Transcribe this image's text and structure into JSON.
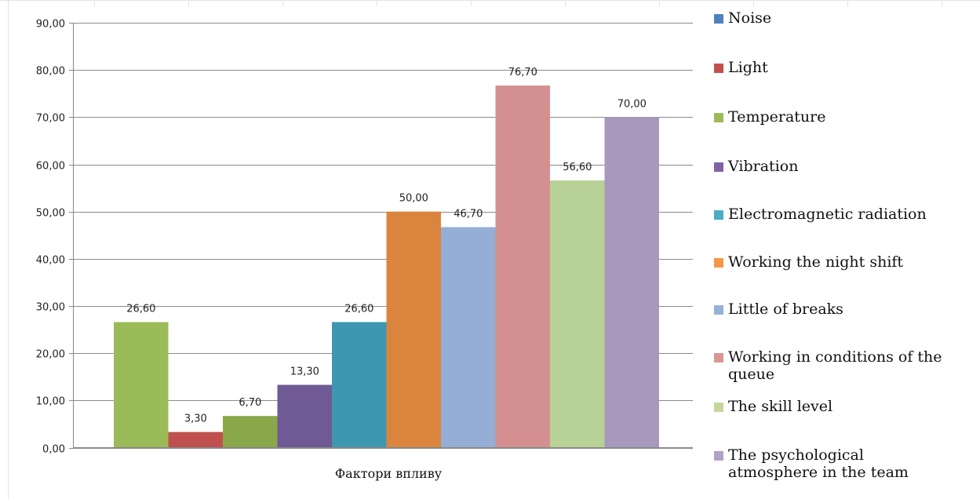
{
  "chart_data": {
    "type": "bar",
    "title": "",
    "xlabel": "Фактори впливу",
    "ylabel": "",
    "ylim": [
      0,
      90
    ],
    "yticks": [
      "0,00",
      "10,00",
      "20,00",
      "30,00",
      "40,00",
      "50,00",
      "60,00",
      "70,00",
      "80,00",
      "90,00"
    ],
    "grid": true,
    "legend_position": "right",
    "series": [
      {
        "name": "Noise",
        "value": 26.6,
        "label": "26,60",
        "color": "#9BBB59"
      },
      {
        "name": "Light",
        "value": 3.3,
        "label": "3,30",
        "color": "#C0504D"
      },
      {
        "name": "Temperature",
        "value": 6.7,
        "label": "6,70",
        "color": "#8AA84A"
      },
      {
        "name": "Vibration",
        "value": 13.3,
        "label": "13,30",
        "color": "#6F5A96"
      },
      {
        "name": "Electromagnetic radiation",
        "value": 26.6,
        "label": "26,60",
        "color": "#3E97B0"
      },
      {
        "name": "Working the night shift",
        "value": 50.0,
        "label": "50,00",
        "color": "#DB843D"
      },
      {
        "name": "Little of breaks",
        "value": 46.7,
        "label": "46,70",
        "color": "#95AED5"
      },
      {
        "name": "Working in conditions of the queue",
        "value": 76.7,
        "label": "76,70",
        "color": "#D49090"
      },
      {
        "name": "The skill level",
        "value": 56.6,
        "label": "56,60",
        "color": "#B8D196"
      },
      {
        "name": "The psychological atmosphere in the team",
        "value": 70.0,
        "label": "70,00",
        "color": "#A898BD"
      }
    ],
    "legend": [
      {
        "name": "Noise",
        "color": "#4F81BD"
      },
      {
        "name": "Light",
        "color": "#C0504D"
      },
      {
        "name": "Temperature",
        "color": "#9BBB59"
      },
      {
        "name": "Vibration",
        "color": "#8064A2"
      },
      {
        "name": "Electromagnetic radiation",
        "color": "#4BACC6"
      },
      {
        "name": "Working the night shift",
        "color": "#F79646"
      },
      {
        "name": "Little of breaks",
        "color": "#95B3D7"
      },
      {
        "name": "Working in conditions of the queue",
        "color": "#D99694"
      },
      {
        "name": "The skill level",
        "color": "#C3D69B"
      },
      {
        "name": "The psychological atmosphere in the team",
        "color": "#B2A1C7"
      }
    ]
  }
}
